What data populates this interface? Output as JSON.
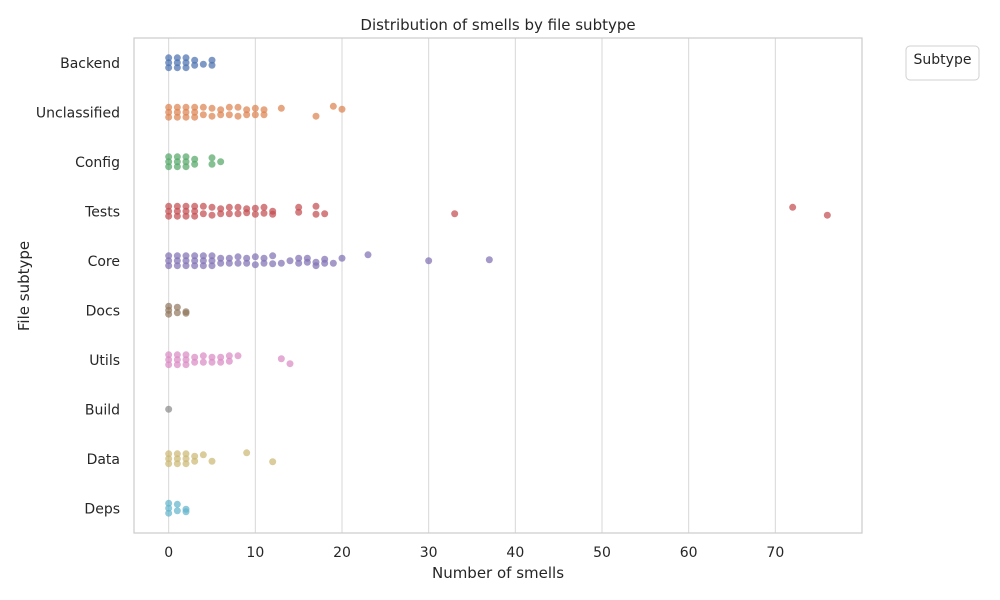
{
  "chart_data": {
    "type": "scatter",
    "subtype": "strip",
    "title": "Distribution of smells by file subtype",
    "xlabel": "Number of smells",
    "ylabel": "File subtype",
    "xlim": [
      -4,
      80
    ],
    "xticks": [
      0,
      10,
      20,
      30,
      40,
      50,
      60,
      70
    ],
    "grid": "vertical",
    "legend": {
      "title": "Subtype",
      "placement": "outside-top-right",
      "entries": []
    },
    "categories": [
      "Backend",
      "Unclassified",
      "Config",
      "Tests",
      "Core",
      "Docs",
      "Utils",
      "Build",
      "Data",
      "Deps"
    ],
    "series": [
      {
        "category": "Backend",
        "color": "#4c72b0",
        "points": [
          [
            0,
            -0.1
          ],
          [
            0,
            0
          ],
          [
            0,
            0.1
          ],
          [
            1,
            -0.1
          ],
          [
            1,
            0
          ],
          [
            1,
            0.1
          ],
          [
            2,
            -0.1
          ],
          [
            2,
            0
          ],
          [
            2,
            0.1
          ],
          [
            3,
            -0.05
          ],
          [
            3,
            0.05
          ],
          [
            4,
            0.03
          ],
          [
            5,
            -0.05
          ],
          [
            5,
            0.05
          ]
        ]
      },
      {
        "category": "Unclassified",
        "color": "#dd8452",
        "points": [
          [
            0,
            -0.1
          ],
          [
            0,
            0
          ],
          [
            0,
            0.1
          ],
          [
            1,
            -0.1
          ],
          [
            1,
            0
          ],
          [
            1,
            0.1
          ],
          [
            2,
            -0.1
          ],
          [
            2,
            0
          ],
          [
            2,
            0.1
          ],
          [
            3,
            -0.1
          ],
          [
            3,
            0
          ],
          [
            3,
            0.1
          ],
          [
            4,
            -0.1
          ],
          [
            4,
            0.05
          ],
          [
            5,
            -0.08
          ],
          [
            5,
            0.08
          ],
          [
            6,
            -0.05
          ],
          [
            6,
            0.05
          ],
          [
            7,
            -0.1
          ],
          [
            7,
            0.05
          ],
          [
            8,
            -0.1
          ],
          [
            8,
            0.08
          ],
          [
            9,
            -0.05
          ],
          [
            9,
            0.05
          ],
          [
            10,
            -0.08
          ],
          [
            10,
            0.05
          ],
          [
            11,
            -0.05
          ],
          [
            11,
            0.05
          ],
          [
            13,
            -0.08
          ],
          [
            17,
            0.08
          ],
          [
            19,
            -0.12
          ],
          [
            20,
            -0.06
          ]
        ]
      },
      {
        "category": "Config",
        "color": "#55a868",
        "points": [
          [
            0,
            -0.1
          ],
          [
            0,
            0
          ],
          [
            0,
            0.1
          ],
          [
            1,
            -0.1
          ],
          [
            1,
            0
          ],
          [
            1,
            0.1
          ],
          [
            2,
            -0.1
          ],
          [
            2,
            0
          ],
          [
            2,
            0.1
          ],
          [
            3,
            -0.05
          ],
          [
            3,
            0.05
          ],
          [
            5,
            -0.08
          ],
          [
            5,
            0.05
          ],
          [
            6,
            0
          ]
        ]
      },
      {
        "category": "Tests",
        "color": "#c44e52",
        "points": [
          [
            0,
            -0.1
          ],
          [
            0,
            0
          ],
          [
            0,
            0.1
          ],
          [
            1,
            -0.1
          ],
          [
            1,
            0
          ],
          [
            1,
            0.1
          ],
          [
            2,
            -0.1
          ],
          [
            2,
            0
          ],
          [
            2,
            0.1
          ],
          [
            3,
            -0.1
          ],
          [
            3,
            0
          ],
          [
            3,
            0.1
          ],
          [
            4,
            -0.1
          ],
          [
            4,
            0.05
          ],
          [
            5,
            -0.08
          ],
          [
            5,
            0.08
          ],
          [
            6,
            -0.05
          ],
          [
            6,
            0.05
          ],
          [
            7,
            -0.08
          ],
          [
            7,
            0.05
          ],
          [
            8,
            -0.08
          ],
          [
            8,
            0.05
          ],
          [
            9,
            -0.05
          ],
          [
            9,
            0.03
          ],
          [
            10,
            -0.06
          ],
          [
            10,
            0.06
          ],
          [
            11,
            -0.08
          ],
          [
            11,
            0.04
          ],
          [
            12,
            0
          ],
          [
            12,
            0.06
          ],
          [
            15,
            -0.08
          ],
          [
            15,
            0.02
          ],
          [
            17,
            -0.1
          ],
          [
            17,
            0.06
          ],
          [
            18,
            0.05
          ],
          [
            33,
            0.05
          ],
          [
            72,
            -0.08
          ],
          [
            76,
            0.08
          ]
        ]
      },
      {
        "category": "Core",
        "color": "#8172b3",
        "points": [
          [
            0,
            -0.1
          ],
          [
            0,
            0
          ],
          [
            0,
            0.1
          ],
          [
            1,
            -0.1
          ],
          [
            1,
            0
          ],
          [
            1,
            0.1
          ],
          [
            2,
            -0.1
          ],
          [
            2,
            0
          ],
          [
            2,
            0.1
          ],
          [
            3,
            -0.1
          ],
          [
            3,
            0
          ],
          [
            3,
            0.1
          ],
          [
            4,
            -0.1
          ],
          [
            4,
            0
          ],
          [
            4,
            0.1
          ],
          [
            5,
            -0.1
          ],
          [
            5,
            0
          ],
          [
            5,
            0.1
          ],
          [
            6,
            -0.05
          ],
          [
            6,
            0.05
          ],
          [
            7,
            -0.05
          ],
          [
            7,
            0.05
          ],
          [
            8,
            -0.08
          ],
          [
            8,
            0.05
          ],
          [
            9,
            -0.05
          ],
          [
            9,
            0.05
          ],
          [
            10,
            -0.08
          ],
          [
            10,
            0.08
          ],
          [
            11,
            -0.05
          ],
          [
            11,
            0.05
          ],
          [
            12,
            -0.1
          ],
          [
            12,
            0.06
          ],
          [
            13,
            0.05
          ],
          [
            14,
            0
          ],
          [
            15,
            -0.05
          ],
          [
            15,
            0.05
          ],
          [
            16,
            -0.05
          ],
          [
            16,
            0.03
          ],
          [
            17,
            0.03
          ],
          [
            17,
            0.1
          ],
          [
            18,
            -0.03
          ],
          [
            18,
            0.05
          ],
          [
            19,
            0.05
          ],
          [
            20,
            -0.05
          ],
          [
            23,
            -0.12
          ],
          [
            30,
            0
          ],
          [
            37,
            -0.02
          ]
        ]
      },
      {
        "category": "Docs",
        "color": "#937860",
        "points": [
          [
            0,
            -0.08
          ],
          [
            0,
            0
          ],
          [
            0,
            0.08
          ],
          [
            1,
            -0.06
          ],
          [
            1,
            0.05
          ],
          [
            2,
            0.03
          ],
          [
            2,
            0.06
          ]
        ]
      },
      {
        "category": "Utils",
        "color": "#da8bc3",
        "points": [
          [
            0,
            -0.1
          ],
          [
            0,
            0
          ],
          [
            0,
            0.1
          ],
          [
            1,
            -0.1
          ],
          [
            1,
            0
          ],
          [
            1,
            0.1
          ],
          [
            2,
            -0.1
          ],
          [
            2,
            0
          ],
          [
            2,
            0.1
          ],
          [
            3,
            -0.05
          ],
          [
            3,
            0.05
          ],
          [
            4,
            -0.08
          ],
          [
            4,
            0.05
          ],
          [
            5,
            -0.05
          ],
          [
            5,
            0.05
          ],
          [
            6,
            -0.05
          ],
          [
            6,
            0.05
          ],
          [
            7,
            -0.08
          ],
          [
            7,
            0.03
          ],
          [
            8,
            -0.08
          ],
          [
            13,
            -0.02
          ],
          [
            14,
            0.08
          ]
        ]
      },
      {
        "category": "Build",
        "color": "#8c8c8c",
        "points": [
          [
            0,
            0
          ]
        ]
      },
      {
        "category": "Data",
        "color": "#ccb974",
        "points": [
          [
            0,
            -0.1
          ],
          [
            0,
            0
          ],
          [
            0,
            0.1
          ],
          [
            1,
            -0.1
          ],
          [
            1,
            0
          ],
          [
            1,
            0.1
          ],
          [
            2,
            -0.1
          ],
          [
            2,
            0
          ],
          [
            2,
            0.1
          ],
          [
            3,
            -0.05
          ],
          [
            3,
            0.05
          ],
          [
            4,
            -0.08
          ],
          [
            5,
            0.05
          ],
          [
            9,
            -0.12
          ],
          [
            12,
            0.06
          ]
        ]
      },
      {
        "category": "Deps",
        "color": "#64b5cd",
        "points": [
          [
            0,
            -0.1
          ],
          [
            0,
            0
          ],
          [
            0,
            0.1
          ],
          [
            1,
            -0.08
          ],
          [
            1,
            0.05
          ],
          [
            2,
            0.02
          ],
          [
            2,
            0.07
          ]
        ]
      }
    ]
  }
}
